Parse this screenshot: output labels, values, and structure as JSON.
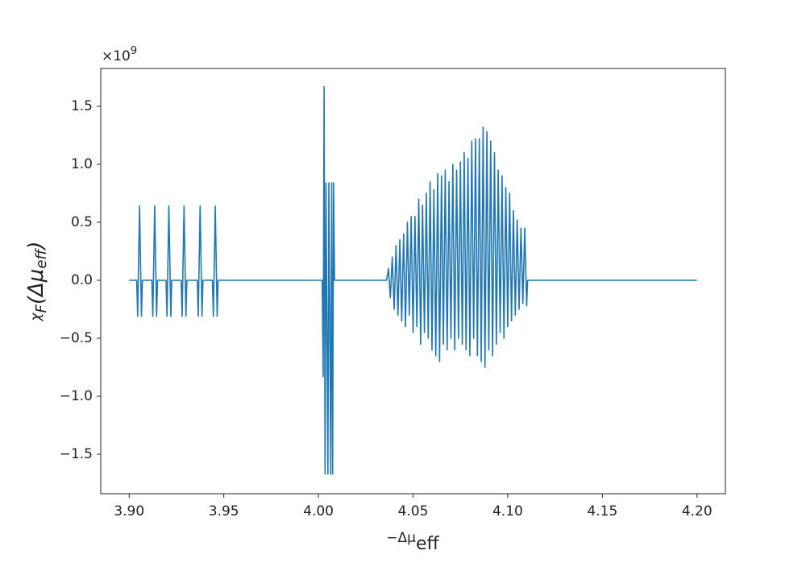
{
  "chart_data": {
    "type": "line",
    "ylabel": [
      "χ",
      "F",
      "(Δμ",
      "eff",
      ")"
    ],
    "xlabel": [
      "−Δμ",
      "eff"
    ],
    "y_offset_label": [
      "×10",
      "9"
    ],
    "x": [
      3.9,
      3.904,
      3.9045,
      3.9055,
      3.9065,
      3.907,
      3.912,
      3.9125,
      3.9135,
      3.9145,
      3.915,
      3.9195,
      3.92,
      3.921,
      3.922,
      3.9225,
      3.9275,
      3.928,
      3.929,
      3.93,
      3.9305,
      3.936,
      3.9365,
      3.9375,
      3.9385,
      3.939,
      3.944,
      3.9445,
      3.9455,
      3.9465,
      3.947,
      4.002,
      4.0025,
      4.003,
      4.0035,
      4.004,
      4.005,
      4.0055,
      4.0065,
      4.007,
      4.0075,
      4.008,
      4.0085,
      4.036,
      4.037,
      4.038,
      4.039,
      4.04,
      4.041,
      4.042,
      4.043,
      4.044,
      4.045,
      4.046,
      4.047,
      4.048,
      4.049,
      4.05,
      4.051,
      4.052,
      4.053,
      4.054,
      4.055,
      4.056,
      4.057,
      4.058,
      4.059,
      4.06,
      4.061,
      4.062,
      4.063,
      4.064,
      4.065,
      4.066,
      4.067,
      4.068,
      4.069,
      4.07,
      4.071,
      4.072,
      4.073,
      4.074,
      4.075,
      4.076,
      4.077,
      4.078,
      4.079,
      4.08,
      4.081,
      4.082,
      4.083,
      4.084,
      4.085,
      4.086,
      4.087,
      4.088,
      4.089,
      4.09,
      4.091,
      4.092,
      4.093,
      4.094,
      4.095,
      4.096,
      4.097,
      4.098,
      4.099,
      4.1,
      4.101,
      4.102,
      4.103,
      4.104,
      4.105,
      4.106,
      4.107,
      4.108,
      4.109,
      4.11,
      4.1105,
      4.2
    ],
    "series": [
      {
        "color": "#1f77b4",
        "values": [
          0,
          0,
          -0.31,
          0.64,
          -0.31,
          0,
          0,
          -0.31,
          0.64,
          -0.31,
          0,
          0,
          -0.31,
          0.64,
          -0.31,
          0,
          0,
          -0.31,
          0.64,
          -0.31,
          0,
          0,
          -0.31,
          0.64,
          -0.31,
          0,
          0,
          -0.31,
          0.64,
          -0.31,
          0,
          0,
          -0.83,
          1.67,
          -1.67,
          0.84,
          -1.67,
          0.84,
          -1.67,
          0.84,
          -1.67,
          0.84,
          0,
          0,
          0.1,
          -0.15,
          0.2,
          -0.25,
          0.3,
          -0.3,
          0.35,
          -0.35,
          0.4,
          -0.4,
          0.5,
          -0.3,
          0.55,
          -0.45,
          0.55,
          -0.4,
          0.7,
          -0.55,
          0.65,
          -0.45,
          0.75,
          -0.5,
          0.85,
          -0.6,
          0.78,
          -0.65,
          0.92,
          -0.7,
          0.9,
          -0.55,
          0.95,
          -0.6,
          0.85,
          -0.5,
          1.0,
          -0.6,
          0.95,
          -0.5,
          1.02,
          -0.55,
          1.1,
          -0.6,
          1.05,
          -0.65,
          1.2,
          -0.5,
          1.22,
          -0.65,
          1.22,
          -0.7,
          1.32,
          -0.75,
          1.28,
          -0.6,
          1.2,
          -0.65,
          1.1,
          -0.55,
          0.95,
          -0.45,
          0.9,
          -0.5,
          0.8,
          -0.4,
          0.75,
          -0.35,
          0.6,
          -0.3,
          0.52,
          -0.25,
          0.45,
          -0.2,
          0.45,
          -0.22,
          0,
          0
        ]
      }
    ],
    "xlim": [
      3.885,
      4.215
    ],
    "ylim": [
      -1.84,
      1.826
    ],
    "xticks": [
      {
        "value": 3.9,
        "label": "3.90"
      },
      3.95,
      {
        "value": 4.0,
        "label": "4.00"
      },
      4.05,
      {
        "value": 4.1,
        "label": "4.10"
      },
      4.15,
      {
        "value": 4.2,
        "label": "4.20"
      }
    ],
    "yticks": [
      {
        "value": -1.5,
        "label": "−1.5"
      },
      {
        "value": -1.0,
        "label": "−1.0"
      },
      {
        "value": -0.5,
        "label": "−0.5"
      },
      {
        "value": 0,
        "label": "0.0"
      },
      0.5,
      {
        "value": 1.0,
        "label": "1.0"
      },
      1.5
    ],
    "grid": false
  }
}
